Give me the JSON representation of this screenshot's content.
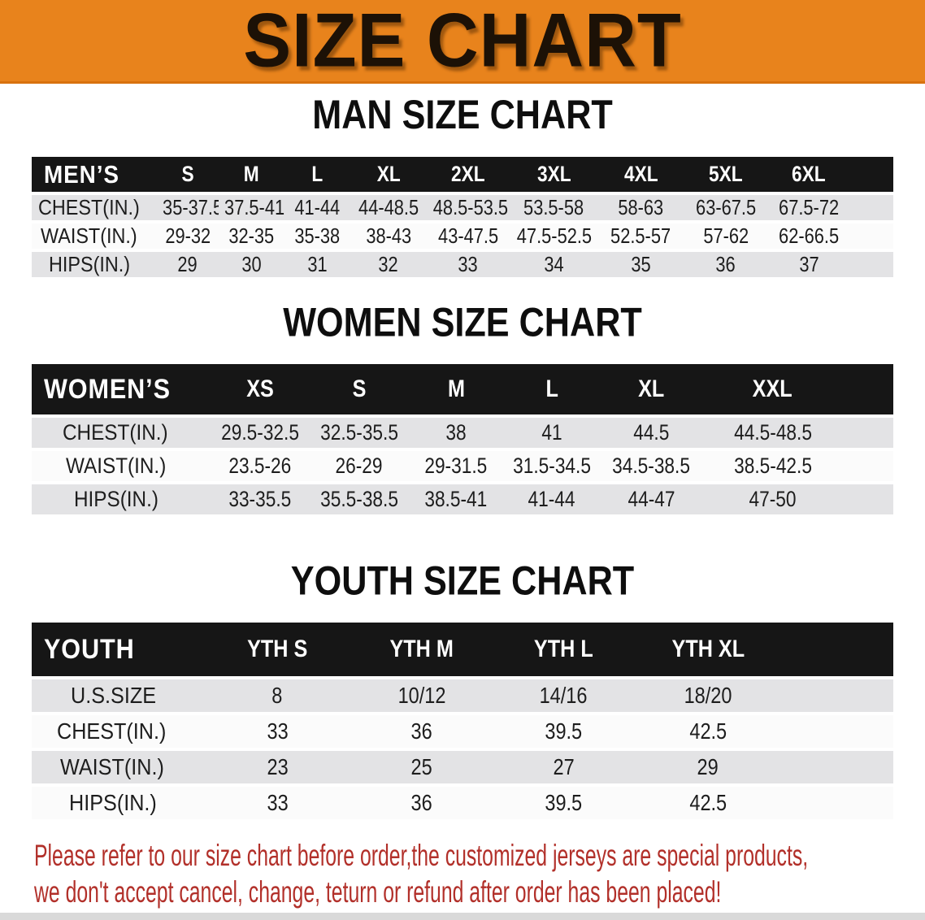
{
  "banner": {
    "title": "SIZE CHART",
    "bg_color": "#E8831C"
  },
  "sections": [
    {
      "heading": "MAN SIZE CHART",
      "table": {
        "header": [
          "MEN’S",
          "S",
          "M",
          "L",
          "XL",
          "2XL",
          "3XL",
          "4XL",
          "5XL",
          "6XL"
        ],
        "rows": [
          {
            "label": "CHEST(IN.)",
            "values": [
              "35-37.5",
              "37.5-41",
              "41-44",
              "44-48.5",
              "48.5-53.5",
              "53.5-58",
              "58-63",
              "63-67.5",
              "67.5-72"
            ]
          },
          {
            "label": "WAIST(IN.)",
            "values": [
              "29-32",
              "32-35",
              "35-38",
              "38-43",
              "43-47.5",
              "47.5-52.5",
              "52.5-57",
              "57-62",
              "62-66.5"
            ]
          },
          {
            "label": "HIPS(IN.)",
            "values": [
              "29",
              "30",
              "31",
              "32",
              "33",
              "34",
              "35",
              "36",
              "37"
            ]
          }
        ]
      }
    },
    {
      "heading": "WOMEN SIZE CHART",
      "table": {
        "header": [
          "WOMEN’S",
          "XS",
          "S",
          "M",
          "L",
          "XL",
          "XXL"
        ],
        "rows": [
          {
            "label": "CHEST(IN.)",
            "values": [
              "29.5-32.5",
              "32.5-35.5",
              "38",
              "41",
              "44.5",
              "44.5-48.5"
            ]
          },
          {
            "label": "WAIST(IN.)",
            "values": [
              "23.5-26",
              "26-29",
              "29-31.5",
              "31.5-34.5",
              "34.5-38.5",
              "38.5-42.5"
            ]
          },
          {
            "label": "HIPS(IN.)",
            "values": [
              "33-35.5",
              "35.5-38.5",
              "38.5-41",
              "41-44",
              "44-47",
              "47-50"
            ]
          }
        ]
      }
    },
    {
      "heading": "YOUTH SIZE CHART",
      "table": {
        "header": [
          "YOUTH",
          "YTH S",
          "YTH M",
          "YTH L",
          "YTH XL"
        ],
        "rows": [
          {
            "label": "U.S.SIZE",
            "values": [
              "8",
              "10/12",
              "14/16",
              "18/20"
            ]
          },
          {
            "label": "CHEST(IN.)",
            "values": [
              "33",
              "36",
              "39.5",
              "42.5"
            ]
          },
          {
            "label": "WAIST(IN.)",
            "values": [
              "23",
              "25",
              "27",
              "29"
            ]
          },
          {
            "label": "HIPS(IN.)",
            "values": [
              "33",
              "36",
              "39.5",
              "42.5"
            ]
          }
        ]
      }
    }
  ],
  "notice": {
    "color": "#B2302A",
    "lines": [
      "Please refer to our size chart before order,the customized jerseys are special products,",
      "we don't accept cancel, change, teturn or refund after order has been placed!"
    ]
  }
}
